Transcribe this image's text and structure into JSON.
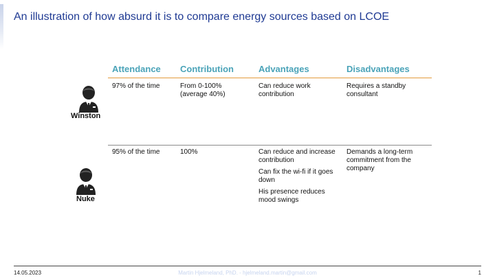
{
  "slide": {
    "title": "An illustration of how absurd it is to compare energy sources based on LCOE"
  },
  "table": {
    "headers": [
      "Attendance",
      "Contribution",
      "Advantages",
      "Disadvantages"
    ],
    "rows": [
      {
        "name": "Winston",
        "icon": "person-suit-icon",
        "attendance": "97% of the time",
        "contribution": [
          "From 0-100%",
          "(average 40%)"
        ],
        "advantages": [
          "Can reduce work contribution"
        ],
        "disadvantages": [
          "Requires a standby consultant"
        ]
      },
      {
        "name": "Nuke",
        "icon": "person-suit-icon",
        "attendance": "95% of the time",
        "contribution": [
          "100%"
        ],
        "advantages": [
          "Can reduce and increase contribution",
          "Can fix the wi-fi if it goes down",
          "His presence reduces mood swings"
        ],
        "disadvantages": [
          "Demands a long-term commitment from the company"
        ]
      }
    ]
  },
  "footer": {
    "date": "14.05.2023",
    "author": "Martin Hjelmeland, PhD. - hjelmeland.martin@gmail.com",
    "page": "1"
  },
  "colors": {
    "title": "#1f3a93",
    "header": "#4aa3b8",
    "header_rule": "#e39a3a",
    "row_rule": "#8a8a8a"
  }
}
